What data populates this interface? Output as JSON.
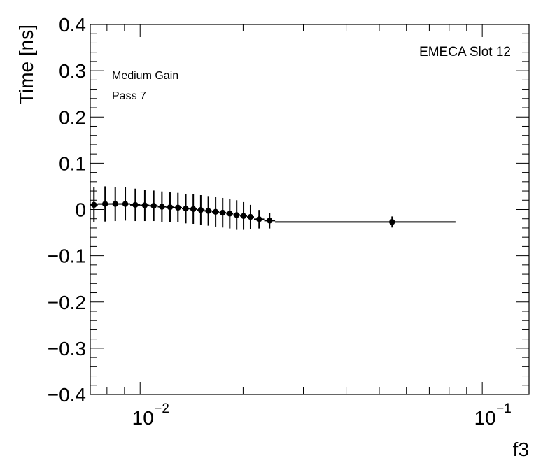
{
  "chart_data": {
    "type": "scatter",
    "title": "",
    "xlabel": "f3",
    "ylabel": "Time [ns]",
    "xscale": "log",
    "xlim": [
      0.00715,
      0.137
    ],
    "ylim": [
      -0.4,
      0.4
    ],
    "grid": false,
    "y_ticks": [
      0.4,
      0.3,
      0.2,
      0.1,
      0,
      -0.1,
      -0.2,
      -0.3,
      -0.4
    ],
    "y_tick_labels": [
      "0.4",
      "0.3",
      "0.2",
      "0.1",
      "0",
      "−0.1",
      "−0.2",
      "−0.3",
      "−0.4"
    ],
    "x_major_ticks": [
      0.01,
      0.1
    ],
    "x_tick_labels": [
      {
        "base": "10",
        "exp": "−2"
      },
      {
        "base": "10",
        "exp": "−1"
      }
    ],
    "annotations": {
      "top_right": "EMECA Slot 12",
      "line1": "Medium Gain",
      "line2": "Pass 7"
    },
    "series": [
      {
        "name": "Medium Gain",
        "points": [
          {
            "x": 0.00733,
            "y": 0.01,
            "yerr": 0.038,
            "xlo": 0.00715,
            "xhi": 0.00752
          },
          {
            "x": 0.0079,
            "y": 0.012,
            "yerr": 0.038,
            "xlo": 0.00752,
            "xhi": 0.00812
          },
          {
            "x": 0.00846,
            "y": 0.012,
            "yerr": 0.037,
            "xlo": 0.00812,
            "xhi": 0.00874
          },
          {
            "x": 0.00905,
            "y": 0.012,
            "yerr": 0.036,
            "xlo": 0.00874,
            "xhi": 0.00935
          },
          {
            "x": 0.00968,
            "y": 0.01,
            "yerr": 0.035,
            "xlo": 0.00935,
            "xhi": 0.01
          },
          {
            "x": 0.01032,
            "y": 0.009,
            "yerr": 0.034,
            "xlo": 0.01,
            "xhi": 0.01064
          },
          {
            "x": 0.01096,
            "y": 0.008,
            "yerr": 0.033,
            "xlo": 0.01064,
            "xhi": 0.01126
          },
          {
            "x": 0.01158,
            "y": 0.006,
            "yerr": 0.033,
            "xlo": 0.01126,
            "xhi": 0.0119
          },
          {
            "x": 0.01223,
            "y": 0.005,
            "yerr": 0.032,
            "xlo": 0.0119,
            "xhi": 0.01256
          },
          {
            "x": 0.0129,
            "y": 0.004,
            "yerr": 0.032,
            "xlo": 0.01256,
            "xhi": 0.01325
          },
          {
            "x": 0.0136,
            "y": 0.002,
            "yerr": 0.032,
            "xlo": 0.01325,
            "xhi": 0.01395
          },
          {
            "x": 0.0143,
            "y": 0.001,
            "yerr": 0.032,
            "xlo": 0.01395,
            "xhi": 0.01467
          },
          {
            "x": 0.01504,
            "y": -0.001,
            "yerr": 0.032,
            "xlo": 0.01467,
            "xhi": 0.01543
          },
          {
            "x": 0.01582,
            "y": -0.003,
            "yerr": 0.032,
            "xlo": 0.01543,
            "xhi": 0.01621
          },
          {
            "x": 0.01662,
            "y": -0.005,
            "yerr": 0.032,
            "xlo": 0.01621,
            "xhi": 0.01702
          },
          {
            "x": 0.01743,
            "y": -0.007,
            "yerr": 0.032,
            "xlo": 0.01702,
            "xhi": 0.01785
          },
          {
            "x": 0.01828,
            "y": -0.009,
            "yerr": 0.032,
            "xlo": 0.01785,
            "xhi": 0.01871
          },
          {
            "x": 0.01915,
            "y": -0.012,
            "yerr": 0.032,
            "xlo": 0.01871,
            "xhi": 0.0196
          },
          {
            "x": 0.02006,
            "y": -0.014,
            "yerr": 0.03,
            "xlo": 0.0196,
            "xhi": 0.02054
          },
          {
            "x": 0.02102,
            "y": -0.016,
            "yerr": 0.026,
            "xlo": 0.02054,
            "xhi": 0.02152
          },
          {
            "x": 0.02227,
            "y": -0.021,
            "yerr": 0.02,
            "xlo": 0.02152,
            "xhi": 0.02305
          },
          {
            "x": 0.0239,
            "y": -0.024,
            "yerr": 0.017,
            "xlo": 0.02305,
            "xhi": 0.0248
          },
          {
            "x": 0.0545,
            "y": -0.027,
            "yerr": 0.012,
            "xlo": 0.0248,
            "xhi": 0.0835
          }
        ]
      }
    ]
  }
}
